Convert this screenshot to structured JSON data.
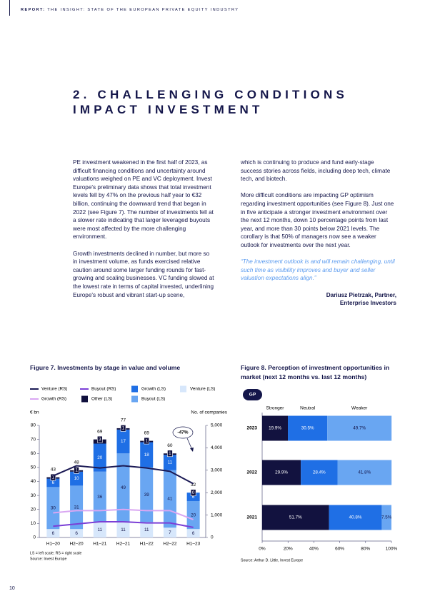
{
  "header": {
    "prefix": "REPORT:",
    "text": "THE INSIGHT: STATE OF THE EUROPEAN PRIVATE EQUITY INDUSTRY"
  },
  "section_title": {
    "line1": "2. CHALLENGING CONDITIONS",
    "line2": "IMPACT INVESTMENT"
  },
  "body": {
    "left": [
      "PE investment weakened in the first half of 2023, as difficult financing conditions and uncertainty around valuations weighed on PE and VC deployment. Invest Europe's preliminary data shows that total investment levels fell by 47% on the previous half year to €32 billion, continuing the downward trend that began in 2022 (see Figure 7). The number of investments fell at a slower rate indicating that larger leveraged buyouts were most affected by the more challenging environment.",
      "Growth investments declined in number, but more so in investment volume, as funds exercised relative caution around some larger funding rounds for fast-growing and scaling businesses. VC funding slowed at the lowest rate in terms of capital invested, underlining Europe's robust and vibrant start-up scene,"
    ],
    "right": [
      "which is continuing to produce and fund early-stage success stories across fields, including deep tech, climate tech, and biotech.",
      "More difficult conditions are impacting GP optimism regarding investment opportunities (see Figure 8). Just one in five anticipate a stronger investment environment over the next 12 months, down 10 percentage points from last year, and more than 30 points below 2021 levels. The corollary is that 50% of managers now see a weaker outlook for investments over the next year."
    ]
  },
  "quote": {
    "text": "“The investment outlook is and will remain challenging, until such time as visibility improves and buyer and seller valuation expectations align.”",
    "author": "Dariusz Pietrzak, Partner,",
    "organization": "Enterprise Investors"
  },
  "page_number": "10",
  "chart_data": [
    {
      "type": "bar",
      "stacked": true,
      "title": "Figure 7. Investments by stage in value and volume",
      "ylabel": "€ bn",
      "y2label": "No. of companies",
      "categories": [
        "H1–20",
        "H2–20",
        "H1–21",
        "H2–21",
        "H1–22",
        "H2–22",
        "H1–23"
      ],
      "series": [
        {
          "name": "Venture (RS)",
          "type": "line",
          "axis": "y2",
          "color": "#1b1a55",
          "values": [
            2750,
            3200,
            3100,
            3200,
            3100,
            2950,
            2400
          ]
        },
        {
          "name": "Growth (RS)",
          "type": "line",
          "axis": "y2",
          "color": "#d9a6f2",
          "values": [
            1100,
            1200,
            1200,
            1250,
            1200,
            1200,
            800
          ]
        },
        {
          "name": "Buyout (RS)",
          "type": "line",
          "axis": "y2",
          "color": "#7b3fd6",
          "values": [
            500,
            600,
            700,
            700,
            650,
            650,
            450
          ]
        },
        {
          "name": "Other (LS)",
          "type": "bar",
          "color": "#10103d",
          "values": [
            1,
            1,
            3,
            1,
            1,
            1,
            0
          ]
        },
        {
          "name": "Growth (LS)",
          "type": "bar",
          "color": "#1f6fe5",
          "values": [
            6,
            10,
            20,
            17,
            18,
            11,
            6
          ]
        },
        {
          "name": "Buyout (LS)",
          "type": "bar",
          "color": "#69a6f2",
          "values": [
            30,
            31,
            36,
            49,
            39,
            41,
            20
          ]
        },
        {
          "name": "Venture (LS)",
          "type": "bar",
          "color": "#d7e7fb",
          "values": [
            6,
            6,
            11,
            11,
            11,
            7,
            6
          ]
        }
      ],
      "totals": [
        43,
        48,
        69,
        77,
        69,
        60,
        32
      ],
      "ylim": [
        0,
        80
      ],
      "yticks": [
        0,
        10,
        20,
        30,
        40,
        50,
        60,
        70,
        80
      ],
      "y2lim": [
        0,
        5000
      ],
      "y2ticks": [
        0,
        {
          "value": 1000,
          "label": "1,000"
        },
        {
          "value": 2000,
          "label": "2,000"
        },
        {
          "value": 3000,
          "label": "3,000"
        },
        {
          "value": 4000,
          "label": "4,000"
        },
        {
          "value": 5000,
          "label": "5,000"
        }
      ],
      "annotation": "-47%",
      "notes": [
        "LS = left scale; RS = right scale",
        "Source: Invest Europe"
      ]
    },
    {
      "type": "bar",
      "orientation": "horizontal",
      "stacked": true,
      "title": "Figure 8. Perception of investment opportunities in market (next 12 months vs. last 12 months)",
      "badge": "GP",
      "categories": [
        "2023",
        "2022",
        "2021"
      ],
      "series": [
        {
          "name": "Stronger",
          "color": "#12123f",
          "values": [
            19.9,
            29.9,
            51.7
          ],
          "value_labels": [
            "19.9%",
            "29.9%",
            "51.7%"
          ]
        },
        {
          "name": "Neutral",
          "color": "#1f6fe5",
          "values": [
            30.5,
            28.4,
            40.8
          ],
          "value_labels": [
            "30.5%",
            "28.4%",
            "40.8%"
          ]
        },
        {
          "name": "Weaker",
          "color": "#69a6f2",
          "values": [
            49.7,
            41.8,
            7.5
          ],
          "value_labels": [
            "49.7%",
            "41.8%",
            "7.5%"
          ]
        }
      ],
      "xlim": [
        0,
        100
      ],
      "xticks": [
        {
          "value": 0,
          "label": "0%"
        },
        {
          "value": 20,
          "label": "20%"
        },
        {
          "value": 40,
          "label": "40%"
        },
        {
          "value": 60,
          "label": "60%"
        },
        {
          "value": 80,
          "label": "80%"
        },
        {
          "value": 100,
          "label": "100%"
        }
      ],
      "source": "Source: Arthur D. Little, Invest Europe"
    }
  ]
}
